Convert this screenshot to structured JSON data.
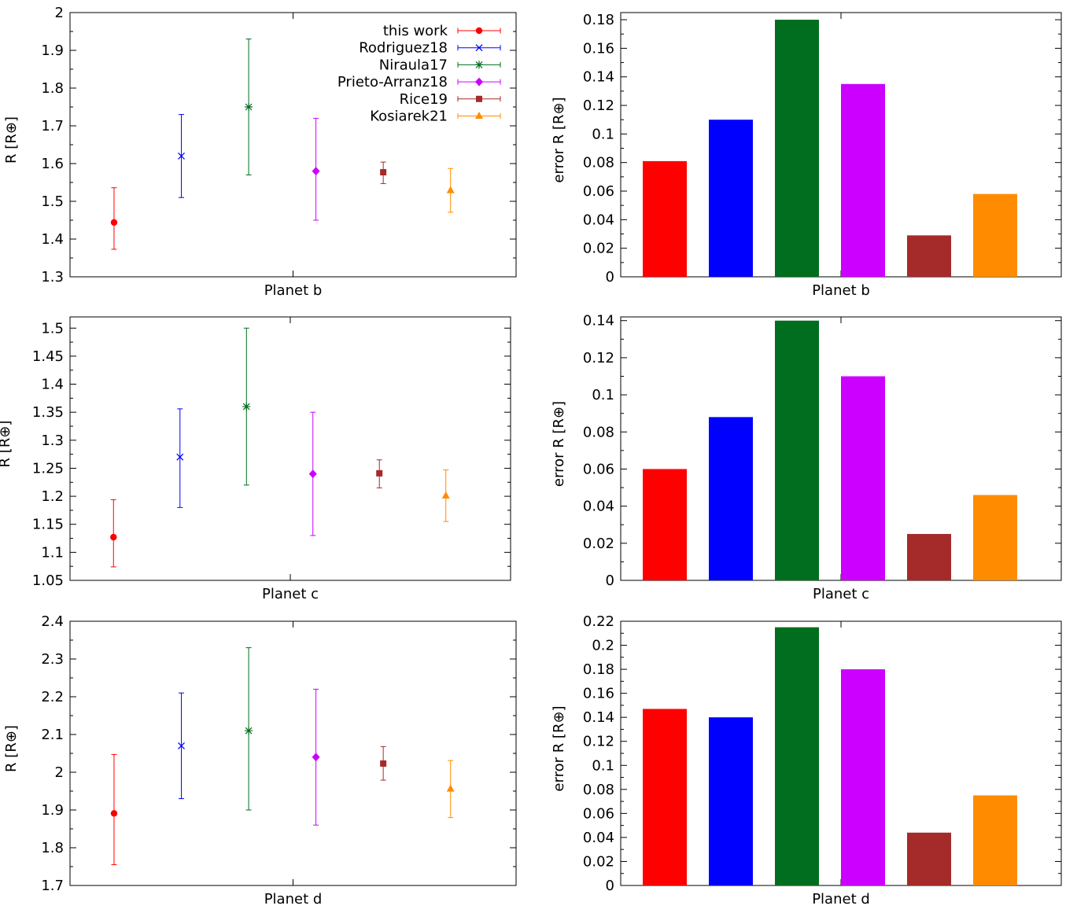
{
  "series_meta": [
    {
      "name": "this work",
      "color": "#ff0000",
      "marker": "circle"
    },
    {
      "name": "Rodriguez18",
      "color": "#0000ff",
      "marker": "cross"
    },
    {
      "name": "Niraula17",
      "color": "#006e1e",
      "marker": "star"
    },
    {
      "name": "Prieto-Arranz18",
      "color": "#cc00ff",
      "marker": "diamond"
    },
    {
      "name": "Rice19",
      "color": "#a52a2a",
      "marker": "square"
    },
    {
      "name": "Kosiarek21",
      "color": "#ff8c00",
      "marker": "triangle"
    }
  ],
  "chart_data": [
    {
      "type": "scatter",
      "title": "",
      "xlabel": "Planet b",
      "ylabel": "R [R⊕]",
      "ylim": [
        1.3,
        2.0
      ],
      "yticks": [
        1.3,
        1.4,
        1.5,
        1.6,
        1.7,
        1.8,
        1.9,
        2.0
      ],
      "ytick_labels": [
        "1.3",
        "1.4",
        "1.5",
        "1.6",
        "1.7",
        "1.8",
        "1.9",
        "2"
      ],
      "legend": "top-right",
      "points": [
        {
          "name": "this work",
          "value": 1.444,
          "err": [
            0.071,
            0.092
          ]
        },
        {
          "name": "Rodriguez18",
          "value": 1.62,
          "err": [
            0.11,
            0.11
          ]
        },
        {
          "name": "Niraula17",
          "value": 1.75,
          "err": [
            0.18,
            0.18
          ]
        },
        {
          "name": "Prieto-Arranz18",
          "value": 1.58,
          "err": [
            0.13,
            0.14
          ]
        },
        {
          "name": "Rice19",
          "value": 1.577,
          "err": [
            0.03,
            0.027
          ]
        },
        {
          "name": "Kosiarek21",
          "value": 1.529,
          "err": [
            0.058,
            0.058
          ]
        }
      ]
    },
    {
      "type": "bar",
      "title": "",
      "xlabel": "Planet b",
      "ylabel": "error R [R⊕]",
      "ylim": [
        0,
        0.185
      ],
      "yticks": [
        0,
        0.02,
        0.04,
        0.06,
        0.08,
        0.1,
        0.12,
        0.14,
        0.16,
        0.18
      ],
      "ytick_labels": [
        "0",
        "0.02",
        "0.04",
        "0.06",
        "0.08",
        "0.1",
        "0.12",
        "0.14",
        "0.16",
        "0.18"
      ],
      "categories": [
        "this work",
        "Rodriguez18",
        "Niraula17",
        "Prieto-Arranz18",
        "Rice19",
        "Kosiarek21"
      ],
      "values": [
        0.081,
        0.11,
        0.18,
        0.135,
        0.029,
        0.058
      ]
    },
    {
      "type": "scatter",
      "title": "",
      "xlabel": "Planet c",
      "ylabel": "R [R⊕]",
      "ylim": [
        1.05,
        1.52
      ],
      "yticks": [
        1.05,
        1.1,
        1.15,
        1.2,
        1.25,
        1.3,
        1.35,
        1.4,
        1.45,
        1.5
      ],
      "ytick_labels": [
        "1.05",
        "1.1",
        "1.15",
        "1.2",
        "1.25",
        "1.3",
        "1.35",
        "1.4",
        "1.45",
        "1.5"
      ],
      "points": [
        {
          "name": "this work",
          "value": 1.127,
          "err": [
            0.053,
            0.067
          ]
        },
        {
          "name": "Rodriguez18",
          "value": 1.27,
          "err": [
            0.09,
            0.086
          ]
        },
        {
          "name": "Niraula17",
          "value": 1.36,
          "err": [
            0.14,
            0.14
          ]
        },
        {
          "name": "Prieto-Arranz18",
          "value": 1.24,
          "err": [
            0.11,
            0.11
          ]
        },
        {
          "name": "Rice19",
          "value": 1.241,
          "err": [
            0.026,
            0.024
          ]
        },
        {
          "name": "Kosiarek21",
          "value": 1.201,
          "err": [
            0.046,
            0.046
          ]
        }
      ]
    },
    {
      "type": "bar",
      "title": "",
      "xlabel": "Planet c",
      "ylabel": "error R [R⊕]",
      "ylim": [
        0,
        0.142
      ],
      "yticks": [
        0,
        0.02,
        0.04,
        0.06,
        0.08,
        0.1,
        0.12,
        0.14
      ],
      "ytick_labels": [
        "0",
        "0.02",
        "0.04",
        "0.06",
        "0.08",
        "0.1",
        "0.12",
        "0.14"
      ],
      "categories": [
        "this work",
        "Rodriguez18",
        "Niraula17",
        "Prieto-Arranz18",
        "Rice19",
        "Kosiarek21"
      ],
      "values": [
        0.06,
        0.088,
        0.14,
        0.11,
        0.025,
        0.046
      ]
    },
    {
      "type": "scatter",
      "title": "",
      "xlabel": "Planet d",
      "ylabel": "R [R⊕]",
      "ylim": [
        1.7,
        2.4
      ],
      "yticks": [
        1.7,
        1.8,
        1.9,
        2.0,
        2.1,
        2.2,
        2.3,
        2.4
      ],
      "ytick_labels": [
        "1.7",
        "1.8",
        "1.9",
        "2",
        "2.1",
        "2.2",
        "2.3",
        "2.4"
      ],
      "points": [
        {
          "name": "this work",
          "value": 1.891,
          "err": [
            0.136,
            0.156
          ]
        },
        {
          "name": "Rodriguez18",
          "value": 2.07,
          "err": [
            0.14,
            0.14
          ]
        },
        {
          "name": "Niraula17",
          "value": 2.11,
          "err": [
            0.21,
            0.22
          ]
        },
        {
          "name": "Prieto-Arranz18",
          "value": 2.04,
          "err": [
            0.18,
            0.18
          ]
        },
        {
          "name": "Rice19",
          "value": 2.023,
          "err": [
            0.044,
            0.045
          ]
        },
        {
          "name": "Kosiarek21",
          "value": 1.956,
          "err": [
            0.076,
            0.075
          ]
        }
      ]
    },
    {
      "type": "bar",
      "title": "",
      "xlabel": "Planet d",
      "ylabel": "error R [R⊕]",
      "ylim": [
        0,
        0.22
      ],
      "yticks": [
        0,
        0.02,
        0.04,
        0.06,
        0.08,
        0.1,
        0.12,
        0.14,
        0.16,
        0.18,
        0.2,
        0.22
      ],
      "ytick_labels": [
        "0",
        "0.02",
        "0.04",
        "0.06",
        "0.08",
        "0.1",
        "0.12",
        "0.14",
        "0.16",
        "0.18",
        "0.2",
        "0.22"
      ],
      "categories": [
        "this work",
        "Rodriguez18",
        "Niraula17",
        "Prieto-Arranz18",
        "Rice19",
        "Kosiarek21"
      ],
      "values": [
        0.147,
        0.14,
        0.215,
        0.18,
        0.044,
        0.075
      ]
    }
  ]
}
